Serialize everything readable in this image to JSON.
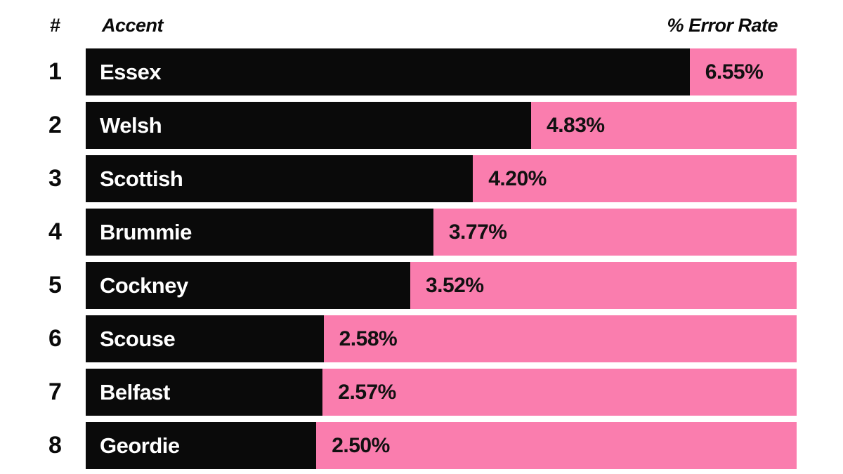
{
  "header": {
    "rank": "#",
    "accent": "Accent",
    "rate": "% Error Rate"
  },
  "chart_data": {
    "type": "bar",
    "orientation": "horizontal",
    "title": "",
    "xlabel": "",
    "ylabel": "",
    "columns": [
      "#",
      "Accent",
      "% Error Rate"
    ],
    "categories": [
      "Essex",
      "Welsh",
      "Scottish",
      "Brummie",
      "Cockney",
      "Scouse",
      "Belfast",
      "Geordie"
    ],
    "ranks": [
      "1",
      "2",
      "3",
      "4",
      "5",
      "6",
      "7",
      "8"
    ],
    "values": [
      6.55,
      4.83,
      4.2,
      3.77,
      3.52,
      2.58,
      2.57,
      2.5
    ],
    "value_labels": [
      "6.55%",
      "4.83%",
      "4.20%",
      "3.77%",
      "3.52%",
      "2.58%",
      "2.57%",
      "2.50%"
    ],
    "xlim": [
      0,
      7.71
    ],
    "grid": false,
    "legend": "none",
    "colors": {
      "bar": "#0a0a0a",
      "track": "#fa7dae",
      "accent_text": "#ffffff",
      "value_text": "#111111",
      "background": "#ffffff"
    }
  }
}
